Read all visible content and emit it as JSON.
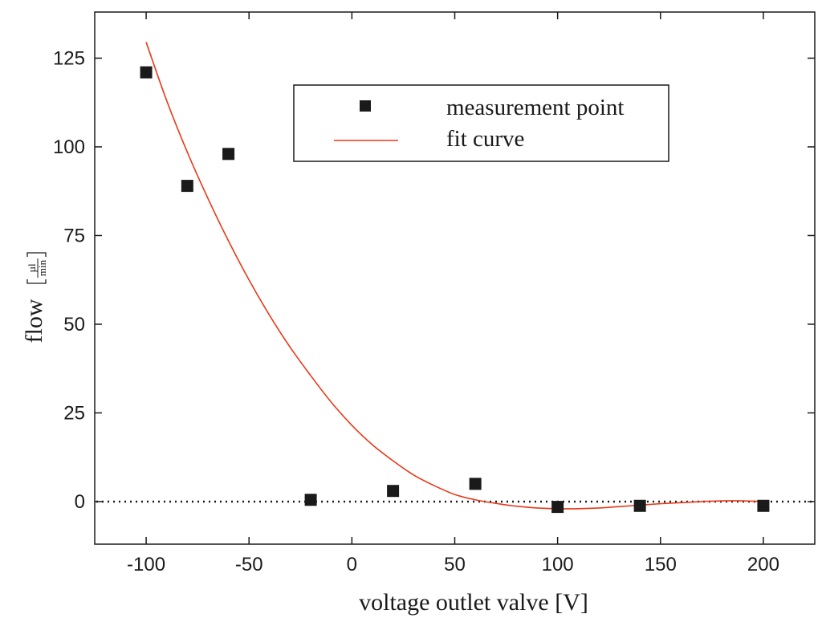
{
  "chart_data": {
    "type": "scatter",
    "title": "",
    "xlabel": "voltage outlet valve [V]",
    "ylabel": "flow",
    "ylabel_unit": {
      "numerator": "µl",
      "denominator": "min"
    },
    "xlim": [
      -125,
      225
    ],
    "ylim": [
      -12,
      138
    ],
    "x_ticks": [
      -100,
      -50,
      0,
      50,
      100,
      150,
      200
    ],
    "x_tick_labels": [
      "-100",
      "-50",
      "0",
      "50",
      "100",
      "150",
      "200"
    ],
    "y_ticks": [
      0,
      25,
      50,
      75,
      100,
      125
    ],
    "y_tick_labels": [
      "0",
      "25",
      "50",
      "75",
      "100",
      "125"
    ],
    "grid": false,
    "reference_line": {
      "y": 0,
      "style": "dotted"
    },
    "legend": {
      "position": "top-center",
      "entries": [
        "measurement point",
        "fit curve"
      ]
    },
    "series": [
      {
        "name": "measurement point",
        "kind": "scatter",
        "marker": "square",
        "color": "#1a1a1a",
        "x": [
          -100,
          -80,
          -60,
          -20,
          20,
          60,
          100,
          140,
          200
        ],
        "y": [
          121,
          89,
          98,
          0.5,
          3,
          5,
          -1.5,
          -1.2,
          -1.2
        ]
      },
      {
        "name": "fit curve",
        "kind": "line",
        "color": "#e8391a",
        "x": [
          -100,
          -90,
          -80,
          -70,
          -60,
          -50,
          -40,
          -30,
          -20,
          -10,
          0,
          10,
          20,
          30,
          40,
          50,
          60,
          70,
          80,
          90,
          100,
          110,
          120,
          130,
          140,
          150,
          160,
          170,
          180,
          190,
          200
        ],
        "y": [
          129.5,
          113,
          98.5,
          85.5,
          73.5,
          62.5,
          52.5,
          43.5,
          35.5,
          28,
          21.5,
          16,
          11.5,
          7.5,
          4.5,
          2,
          0.5,
          -0.5,
          -1.3,
          -1.8,
          -2,
          -2,
          -1.8,
          -1.4,
          -1,
          -0.6,
          -0.3,
          0,
          0.2,
          0.2,
          0
        ]
      }
    ]
  }
}
